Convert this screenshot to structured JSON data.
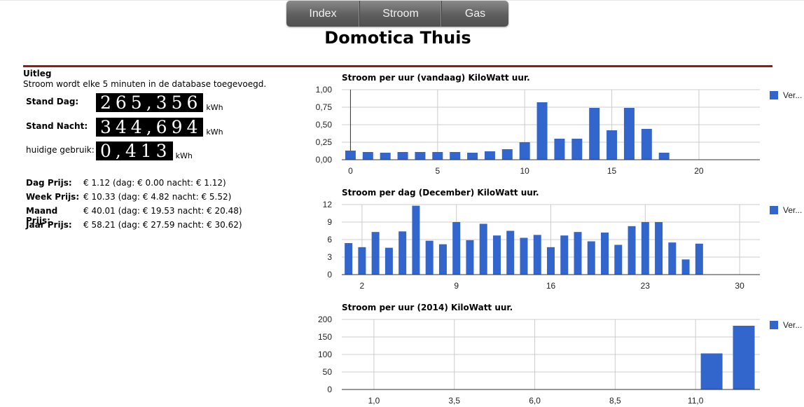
{
  "nav": {
    "items": [
      "Index",
      "Stroom",
      "Gas"
    ]
  },
  "page_title": "Domotica Thuis",
  "uitleg": {
    "heading": "Uitleg",
    "text": "Stroom wordt elke 5 minuten in de database toegevoegd."
  },
  "meters": [
    {
      "label": "Stand Dag:",
      "value": "265,356",
      "unit": "kWh"
    },
    {
      "label": "Stand Nacht:",
      "value": "344,694",
      "unit": "kWh"
    },
    {
      "label": "huidige gebruik:",
      "value": "0,413",
      "unit": "kWh"
    }
  ],
  "prices": [
    {
      "label": "Dag Prijs:",
      "value": "€ 1.12 (dag: € 0.00 nacht: € 1.12)"
    },
    {
      "label": "Week Prijs:",
      "value": "€ 10.33 (dag: € 4.82 nacht: € 5.52)"
    },
    {
      "label": "Maand Prijs:",
      "value": "€ 40.01 (dag: € 19.53 nacht: € 20.48)"
    },
    {
      "label": "Jaar Prijs:",
      "value": "€ 58.21 (dag: € 27.59 nacht: € 30.62)"
    }
  ],
  "colors": {
    "bar": "#3366cc",
    "accent_line": "#a31515"
  },
  "chart_data": [
    {
      "type": "bar",
      "title": "Stroom per uur (vandaag) KiloWatt uur.",
      "legend": "Ver...",
      "legend_position": "right",
      "x": [
        0,
        1,
        2,
        3,
        4,
        5,
        6,
        7,
        8,
        9,
        10,
        11,
        12,
        13,
        14,
        15,
        16,
        17,
        18
      ],
      "values": [
        0.13,
        0.11,
        0.1,
        0.11,
        0.11,
        0.11,
        0.11,
        0.1,
        0.12,
        0.15,
        0.25,
        0.82,
        0.3,
        0.3,
        0.74,
        0.42,
        0.74,
        0.44,
        0.1
      ],
      "xlim": [
        -0.5,
        23.5
      ],
      "ylim": [
        0,
        1
      ],
      "x_ticks": [
        "0",
        "5",
        "10",
        "15",
        "20"
      ],
      "y_ticks": [
        "0,00",
        "0,25",
        "0,50",
        "0,75",
        "1,00"
      ],
      "grid": true
    },
    {
      "type": "bar",
      "title": "Stroom per dag (December) KiloWatt uur.",
      "legend": "Ver...",
      "legend_position": "right",
      "x": [
        1,
        2,
        3,
        4,
        5,
        6,
        7,
        8,
        9,
        10,
        11,
        12,
        13,
        14,
        15,
        16,
        17,
        18,
        19,
        20,
        21,
        22,
        23,
        24,
        25,
        26,
        27
      ],
      "values": [
        5.4,
        4.7,
        7.3,
        4.6,
        7.4,
        11.8,
        5.8,
        5.2,
        9.0,
        5.9,
        8.7,
        6.7,
        7.5,
        6.3,
        6.8,
        4.7,
        6.7,
        7.3,
        5.7,
        7.2,
        5.1,
        8.3,
        9.0,
        9.0,
        5.5,
        2.6,
        5.3
      ],
      "xlim": [
        0.5,
        31.5
      ],
      "ylim": [
        0,
        12
      ],
      "x_ticks": [
        "2",
        "9",
        "16",
        "23",
        "30"
      ],
      "y_ticks": [
        "0",
        "3",
        "6",
        "9",
        "12"
      ],
      "grid": true
    },
    {
      "type": "bar",
      "title": "Stroom per uur (2014) KiloWatt uur.",
      "legend": "Ver...",
      "legend_position": "right",
      "x": [
        11,
        12
      ],
      "values": [
        103,
        182
      ],
      "xlim": [
        0,
        13
      ],
      "ylim": [
        0,
        200
      ],
      "x_ticks": [
        "1,0",
        "3,5",
        "6,0",
        "8,5",
        "11,0"
      ],
      "y_ticks": [
        "0",
        "50",
        "100",
        "150",
        "200"
      ],
      "grid": true
    }
  ]
}
